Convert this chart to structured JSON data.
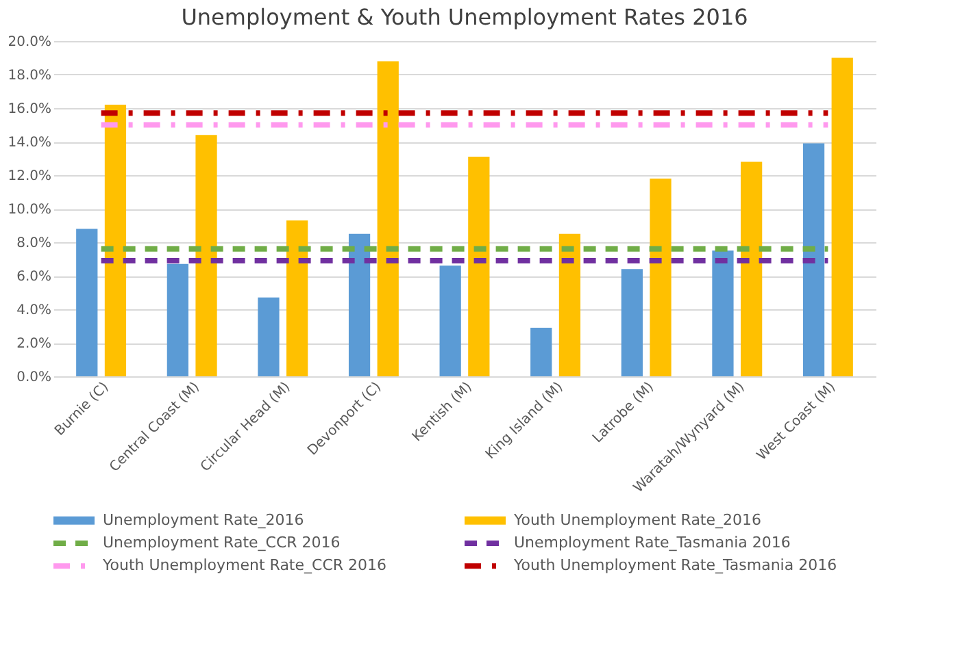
{
  "chart_data": {
    "type": "bar",
    "title": "Unemployment & Youth Unemployment Rates 2016",
    "categories": [
      "Burnie (C)",
      "Central Coast (M)",
      "Circular Head (M)",
      "Devonport (C)",
      "Kentish (M)",
      "King Island (M)",
      "Latrobe (M)",
      "Waratah/Wynyard (M)",
      "West Coast (M)"
    ],
    "series": [
      {
        "name": "Unemployment Rate_2016",
        "color": "#5b9bd5",
        "values": [
          8.8,
          6.7,
          4.7,
          8.5,
          6.6,
          2.9,
          6.4,
          7.5,
          13.9
        ]
      },
      {
        "name": "Youth Unemployment Rate_2016",
        "color": "#ffc000",
        "values": [
          16.2,
          14.4,
          9.3,
          18.8,
          13.1,
          8.5,
          11.8,
          12.8,
          19.0
        ]
      },
      {
        "name": "Unemployment Rate_CCR 2016",
        "type": "line",
        "line_style": "dashed",
        "color": "#70ad47",
        "values": [
          7.6,
          7.6,
          7.6,
          7.6,
          7.6,
          7.6,
          7.6,
          7.6,
          7.6
        ]
      },
      {
        "name": "Unemployment Rate_Tasmania 2016",
        "type": "line",
        "line_style": "dashed",
        "color": "#7030a0",
        "values": [
          6.9,
          6.9,
          6.9,
          6.9,
          6.9,
          6.9,
          6.9,
          6.9,
          6.9
        ]
      },
      {
        "name": "Youth Unemployment Rate_CCR 2016",
        "type": "line",
        "line_style": "dashdot",
        "color": "#ff99ee",
        "values": [
          15.0,
          15.0,
          15.0,
          15.0,
          15.0,
          15.0,
          15.0,
          15.0,
          15.0
        ]
      },
      {
        "name": "Youth Unemployment Rate_Tasmania 2016",
        "type": "line",
        "line_style": "dashdot",
        "color": "#c00000",
        "values": [
          15.7,
          15.7,
          15.7,
          15.7,
          15.7,
          15.7,
          15.7,
          15.7,
          15.7
        ]
      }
    ],
    "ylim": [
      0,
      20
    ],
    "yticks": [
      {
        "value": 0,
        "label": "0.0%"
      },
      {
        "value": 2,
        "label": "2.0%"
      },
      {
        "value": 4,
        "label": "4.0%"
      },
      {
        "value": 6,
        "label": "6.0%"
      },
      {
        "value": 8,
        "label": "8.0%"
      },
      {
        "value": 10,
        "label": "10.0%"
      },
      {
        "value": 12,
        "label": "12.0%"
      },
      {
        "value": 14,
        "label": "14.0%"
      },
      {
        "value": 16,
        "label": "16.0%"
      },
      {
        "value": 18,
        "label": "18.0%"
      },
      {
        "value": 20,
        "label": "20.0%"
      }
    ],
    "grid": "y",
    "legend": "bottom"
  }
}
